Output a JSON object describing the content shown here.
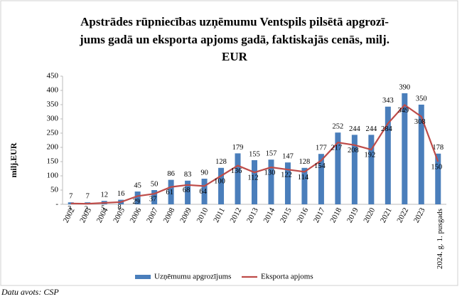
{
  "chart_data": {
    "type": "bar_line",
    "title": [
      "Apstrādes rūpniecības uzņēmumu Ventspils pilsētā apgrozī-",
      "jums gadā un eksporta apjoms gadā, faktiskajās cenās, milj.",
      "EUR"
    ],
    "ylabel": "milj.EUR",
    "source": "Datu avots: CSP",
    "categories": [
      "2002",
      "2003",
      "2004",
      "2005",
      "2006",
      "2007",
      "2008",
      "2009",
      "2010",
      "2011",
      "2012",
      "2013",
      "2014",
      "2015",
      "2016",
      "2017",
      "2018",
      "2019",
      "2020",
      "2021",
      "2022",
      "2023",
      "2024. g. 1. pusgads"
    ],
    "series": [
      {
        "name": "Uzņēmumu apgrozījums",
        "type": "bar",
        "color": "#4a7ebb",
        "values": [
          7,
          7,
          12,
          16,
          45,
          50,
          86,
          83,
          90,
          128,
          179,
          155,
          157,
          147,
          128,
          177,
          252,
          244,
          244,
          343,
          390,
          350,
          178
        ]
      },
      {
        "name": "Eksporta apjoms",
        "type": "line",
        "color": "#be4b48",
        "values": [
          3,
          2,
          5,
          8,
          29,
          37,
          61,
          68,
          64,
          100,
          136,
          112,
          130,
          122,
          114,
          154,
          217,
          208,
          192,
          284,
          349,
          308,
          150
        ]
      }
    ],
    "ylim": [
      0,
      450
    ],
    "yticks": [
      {
        "value": 0,
        "label": "-"
      },
      50,
      100,
      150,
      200,
      250,
      300,
      350,
      400,
      450
    ],
    "legend": "bottom"
  }
}
